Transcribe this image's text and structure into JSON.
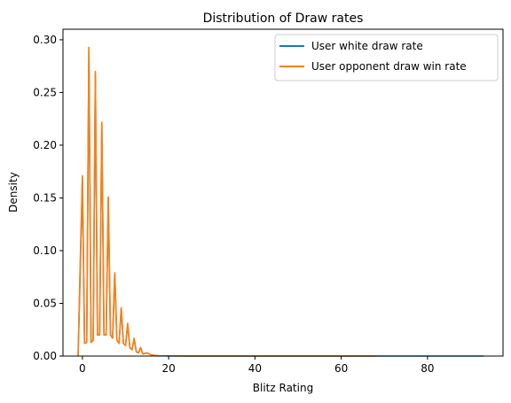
{
  "chart_data": {
    "type": "line",
    "title": "Distribution of Draw rates",
    "xlabel": "Blitz Rating",
    "ylabel": "Density",
    "xlim": [
      -4.5,
      97.5
    ],
    "ylim": [
      0,
      0.31
    ],
    "xticks": [
      0,
      20,
      40,
      60,
      80
    ],
    "yticks": [
      0.0,
      0.05,
      0.1,
      0.15,
      0.2,
      0.25,
      0.3
    ],
    "xtick_labels": [
      "0",
      "20",
      "40",
      "60",
      "80"
    ],
    "ytick_labels": [
      "0.00",
      "0.05",
      "0.10",
      "0.15",
      "0.20",
      "0.25",
      "0.30"
    ],
    "grid": false,
    "legend_position": "upper-right",
    "series": [
      {
        "name": "User white draw rate",
        "color": "#1f77b4",
        "x": [
          -1,
          -0.5,
          0,
          0.5,
          1,
          1.5,
          2,
          2.5,
          3,
          3.5,
          4,
          4.5,
          5,
          5.5,
          6,
          6.5,
          7,
          7.5,
          8,
          8.5,
          9,
          9.5,
          10,
          10.5,
          11,
          11.5,
          12,
          12.5,
          13,
          13.5,
          14,
          15,
          16,
          17,
          18,
          20,
          25,
          30,
          40,
          50,
          60,
          70,
          80,
          93
        ],
        "y": [
          0.0,
          0.08,
          0.169,
          0.012,
          0.013,
          0.29,
          0.013,
          0.015,
          0.268,
          0.02,
          0.02,
          0.22,
          0.02,
          0.02,
          0.15,
          0.02,
          0.017,
          0.078,
          0.015,
          0.012,
          0.045,
          0.012,
          0.01,
          0.03,
          0.008,
          0.006,
          0.016,
          0.004,
          0.003,
          0.008,
          0.002,
          0.003,
          0.001,
          0.0005,
          0.0002,
          0.0001,
          0.0,
          0.0,
          0.0,
          0.0,
          0.0,
          0.0,
          0.0,
          0.0
        ]
      },
      {
        "name": "User opponent draw win rate",
        "color": "#ff7f0e",
        "x": [
          -1,
          -0.5,
          0,
          0.5,
          1,
          1.5,
          2,
          2.5,
          3,
          3.5,
          4,
          4.5,
          5,
          5.5,
          6,
          6.5,
          7,
          7.5,
          8,
          8.5,
          9,
          9.5,
          10,
          10.5,
          11,
          11.5,
          12,
          12.5,
          13,
          13.5,
          14,
          15,
          16,
          17,
          18,
          20,
          25,
          30,
          40,
          50,
          60,
          68
        ],
        "y": [
          0.0,
          0.09,
          0.171,
          0.012,
          0.013,
          0.293,
          0.013,
          0.015,
          0.27,
          0.02,
          0.02,
          0.222,
          0.02,
          0.02,
          0.151,
          0.02,
          0.017,
          0.079,
          0.015,
          0.012,
          0.046,
          0.012,
          0.01,
          0.031,
          0.008,
          0.006,
          0.017,
          0.004,
          0.003,
          0.008,
          0.002,
          0.003,
          0.001,
          0.0005,
          0.0002,
          0.0001,
          0.0,
          0.0,
          0.0,
          0.0,
          0.0,
          0.0
        ]
      }
    ]
  }
}
